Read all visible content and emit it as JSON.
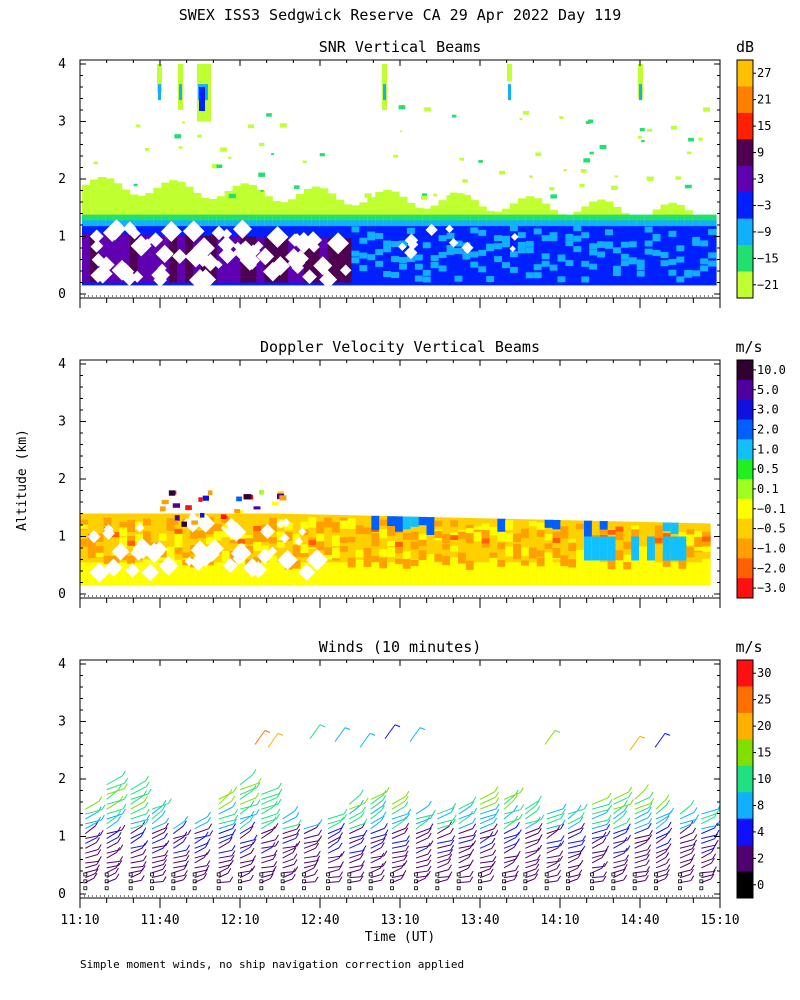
{
  "title": "SWEX ISS3 Sedgwick Reserve CA  29 Apr 2022 Day 119",
  "footnote": "Simple moment winds, no ship navigation correction applied",
  "shared_axes": {
    "xlabel": "Time (UT)",
    "ylabel": "Altitude (km)",
    "x_ticks": [
      "11:10",
      "11:40",
      "12:10",
      "12:40",
      "13:10",
      "13:40",
      "14:10",
      "14:40",
      "15:10"
    ],
    "y_ticks": [
      "0",
      "1",
      "2",
      "3",
      "4"
    ],
    "xlim_minutes_utc": [
      670,
      910
    ],
    "ylim_km": [
      0,
      4
    ]
  },
  "chart_data": [
    {
      "type": "heatmap",
      "title": "SNR Vertical Beams",
      "colorbar_unit": "dB",
      "colorbar_labels": [
        "27",
        "21",
        "15",
        "9",
        "3",
        "−3",
        "−9",
        "−15",
        "−21"
      ],
      "colorbar_colors": [
        "#ffc000",
        "#ff8000",
        "#ff2000",
        "#500050",
        "#6000b0",
        "#0020ff",
        "#10b0ff",
        "#20e070",
        "#c0ff30"
      ],
      "ylim": [
        0,
        4
      ],
      "layers_km": [
        {
          "from": 0.15,
          "to": 0.9,
          "value_db": 6
        },
        {
          "from": 0.9,
          "to": 1.25,
          "value_db": -3
        },
        {
          "from": 1.25,
          "to": 1.4,
          "value_db": -9
        },
        {
          "from": 1.4,
          "to": 1.7,
          "value_db": -21
        }
      ]
    },
    {
      "type": "heatmap",
      "title": "Doppler Velocity Vertical Beams",
      "colorbar_unit": "m/s",
      "colorbar_labels": [
        "10.0",
        "5.0",
        "3.0",
        "2.0",
        "1.0",
        "0.5",
        "0.1",
        "−0.1",
        "−0.5",
        "−1.0",
        "−2.0",
        "−3.0"
      ],
      "colorbar_colors": [
        "#300030",
        "#5000a0",
        "#1010e0",
        "#0060ff",
        "#10c0ff",
        "#20f020",
        "#a0ff20",
        "#ffff00",
        "#ffd000",
        "#ffa000",
        "#ff6000",
        "#ff1010"
      ],
      "ylim": [
        0,
        4
      ],
      "layers_km": [
        {
          "from": 0.15,
          "to": 0.6,
          "value_ms": -0.1
        },
        {
          "from": 0.6,
          "to": 1.2,
          "value_ms": -0.5
        },
        {
          "from": 1.2,
          "to": 1.4,
          "value_ms": -1.0
        }
      ]
    },
    {
      "type": "scatter",
      "title": "Winds (10 minutes)",
      "colorbar_unit": "m/s",
      "colorbar_labels": [
        "30",
        "25",
        "20",
        "15",
        "10",
        "8",
        "4",
        "2",
        "0"
      ],
      "colorbar_colors": [
        "#ff1010",
        "#ff7000",
        "#ffb000",
        "#80e000",
        "#20e080",
        "#10b0ff",
        "#1010ff",
        "#500070",
        "#000000"
      ],
      "ylim": [
        0,
        4
      ],
      "profile_times_minutes_utc": [
        672,
        680,
        689,
        697,
        705,
        713,
        722,
        730,
        738,
        746,
        754,
        763,
        771,
        779,
        787,
        796,
        804,
        812,
        820,
        829,
        837,
        845,
        853,
        862,
        870,
        878,
        886,
        895,
        903
      ]
    }
  ]
}
